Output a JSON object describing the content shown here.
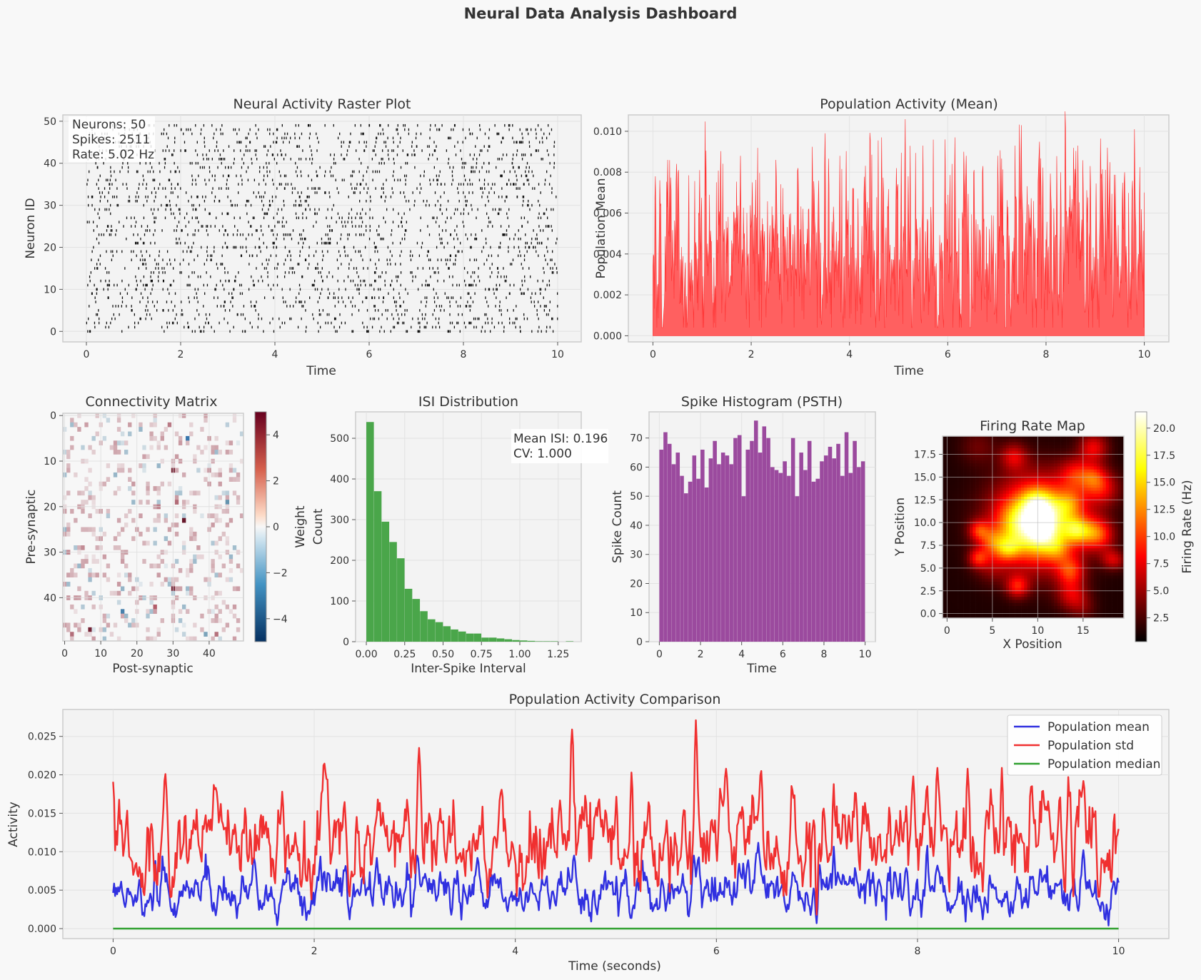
{
  "suptitle": "Neural Data Analysis Dashboard",
  "colors": {
    "background": "#f8f8f8",
    "panel": "#f3f3f3",
    "spike": "#111111",
    "pop_fill": "#ff6060",
    "pop_line": "#ff3030",
    "isi": "#4aa64a",
    "psth": "#9b4a9e",
    "mean": "#3030e0",
    "std": "#f03030",
    "median": "#30a030"
  },
  "chart_data": [
    {
      "id": "raster",
      "type": "scatter",
      "title": "Neural Activity Raster Plot",
      "xlabel": "Time",
      "ylabel": "Neuron ID",
      "xlim": [
        -0.5,
        10.5
      ],
      "ylim": [
        -2.5,
        51.5
      ],
      "xticks": [
        0,
        2,
        4,
        6,
        8,
        10
      ],
      "yticks": [
        0,
        10,
        20,
        30,
        40,
        50
      ],
      "marker": "|",
      "neurons": 50,
      "grid": true,
      "stats": [
        "Neurons: 50",
        "Spikes: 2511",
        "Rate: 5.02 Hz"
      ]
    },
    {
      "id": "population-mean",
      "type": "area",
      "title": "Population Activity (Mean)",
      "xlabel": "Time",
      "ylabel": "Population Mean",
      "xlim": [
        -0.5,
        10.5
      ],
      "ylim": [
        -0.0003,
        0.0108
      ],
      "xticks": [
        0,
        2,
        4,
        6,
        8,
        10
      ],
      "yticks": [
        "0.000",
        "0.002",
        "0.004",
        "0.006",
        "0.008",
        "0.010"
      ],
      "x_range": [
        0,
        10
      ],
      "typical_range": [
        0.0015,
        0.0065
      ],
      "peaks": [
        [
          0.05,
          0.0078
        ],
        [
          0.3,
          0.0086
        ],
        [
          0.52,
          0.0081
        ],
        [
          0.95,
          0.0081
        ],
        [
          1.38,
          0.0098
        ],
        [
          1.78,
          0.0088
        ],
        [
          2.5,
          0.0086
        ],
        [
          2.95,
          0.0082
        ],
        [
          3.5,
          0.0099
        ],
        [
          3.8,
          0.0088
        ],
        [
          4.65,
          0.0097
        ],
        [
          4.95,
          0.0082
        ],
        [
          5.5,
          0.0093
        ],
        [
          5.95,
          0.0096
        ],
        [
          6.15,
          0.0097
        ],
        [
          6.72,
          0.0083
        ],
        [
          7.02,
          0.0096
        ],
        [
          7.5,
          0.0103
        ],
        [
          7.85,
          0.0082
        ],
        [
          8.65,
          0.0093
        ],
        [
          8.9,
          0.0083
        ],
        [
          9.25,
          0.0092
        ],
        [
          9.6,
          0.008
        ],
        [
          9.8,
          0.0101
        ],
        [
          6.38,
          0.0088
        ],
        [
          2.02,
          0.0075
        ],
        [
          5.2,
          0.0078
        ],
        [
          8.3,
          0.008
        ]
      ],
      "dips": [
        [
          0.9,
          0.0016
        ],
        [
          1.4,
          0.0011
        ],
        [
          2.3,
          0.0009
        ],
        [
          3.45,
          0.002
        ],
        [
          4.15,
          0.0012
        ],
        [
          5.32,
          0.0018
        ],
        [
          7.0,
          0.0006
        ],
        [
          8.8,
          0.0012
        ],
        [
          9.7,
          0.0018
        ]
      ],
      "grid": true
    },
    {
      "id": "connectivity",
      "type": "heatmap",
      "title": "Connectivity Matrix",
      "xlabel": "Post-synaptic",
      "ylabel": "Pre-synaptic",
      "size": 50,
      "xticks": [
        0,
        10,
        20,
        30,
        40
      ],
      "yticks": [
        0,
        10,
        20,
        30,
        40
      ],
      "colorbar_label": "Weight",
      "colorbar_ticks": [
        "4",
        "2",
        "0",
        "−2",
        "−4"
      ],
      "vlim": [
        -5,
        5
      ],
      "colormap": "RdBu_r"
    },
    {
      "id": "isi",
      "type": "bar",
      "title": "ISI Distribution",
      "xlabel": "Inter-Spike Interval",
      "ylabel": "Count",
      "xlim": [
        -0.07,
        1.4
      ],
      "ylim": [
        0,
        565
      ],
      "xticks": [
        "0.00",
        "0.25",
        "0.50",
        "0.75",
        "1.00",
        "1.25"
      ],
      "yticks": [
        0,
        100,
        200,
        300,
        400,
        500
      ],
      "bin_width": 0.05,
      "x": [
        0.0,
        0.05,
        0.1,
        0.15,
        0.2,
        0.25,
        0.3,
        0.35,
        0.4,
        0.45,
        0.5,
        0.55,
        0.6,
        0.65,
        0.7,
        0.75,
        0.8,
        0.85,
        0.9,
        0.95,
        1.0,
        1.05,
        1.1,
        1.15,
        1.2,
        1.25,
        1.3
      ],
      "values": [
        540,
        370,
        295,
        245,
        205,
        130,
        105,
        75,
        55,
        48,
        38,
        30,
        25,
        20,
        20,
        10,
        10,
        8,
        6,
        4,
        3,
        2,
        1,
        1,
        1,
        0,
        1
      ],
      "annotation": [
        "Mean ISI: 0.196",
        "CV: 1.000"
      ],
      "grid": true
    },
    {
      "id": "psth",
      "type": "bar",
      "title": "Spike Histogram (PSTH)",
      "xlabel": "Time",
      "ylabel": "Spike Count",
      "xlim": [
        -0.5,
        10.5
      ],
      "ylim": [
        0,
        79
      ],
      "xticks": [
        0,
        2,
        4,
        6,
        8,
        10
      ],
      "yticks": [
        0,
        10,
        20,
        30,
        40,
        50,
        60,
        70
      ],
      "bin_width": 0.2,
      "values": [
        66,
        72,
        68,
        61,
        65,
        57,
        51,
        55,
        64,
        56,
        66,
        53,
        63,
        69,
        61,
        65,
        64,
        61,
        70,
        71,
        50,
        66,
        69,
        76,
        65,
        74,
        70,
        60,
        59,
        58,
        62,
        57,
        70,
        50,
        65,
        59,
        69,
        55,
        56,
        62,
        64,
        67,
        63,
        68,
        57,
        72,
        58,
        69,
        60,
        62
      ],
      "grid": true
    },
    {
      "id": "firing-rate-map",
      "type": "heatmap",
      "title": "Firing Rate Map",
      "xlabel": "X Position",
      "ylabel": "Y Position",
      "grid_size": 20,
      "xticks": [
        0,
        5,
        10,
        15
      ],
      "yticks": [
        "0.0",
        "2.5",
        "5.0",
        "7.5",
        "10.0",
        "12.5",
        "15.0",
        "17.5"
      ],
      "colorbar_label": "Firing Rate (Hz)",
      "colorbar_ticks": [
        "20.0",
        "17.5",
        "15.0",
        "12.5",
        "10.0",
        "7.5",
        "5.0",
        "2.5"
      ],
      "vlim": [
        0.3,
        21.5
      ],
      "colormap": "hot",
      "place_fields": [
        [
          10,
          10,
          3.3,
          16
        ],
        [
          8,
          10,
          1.6,
          5
        ],
        [
          11,
          11,
          1.4,
          5
        ],
        [
          10,
          8,
          1.3,
          3
        ]
      ]
    },
    {
      "id": "comparison",
      "type": "line",
      "title": "Population Activity Comparison",
      "xlabel": "Time (seconds)",
      "ylabel": "Activity",
      "xlim": [
        -0.5,
        10.5
      ],
      "ylim": [
        -0.0013,
        0.0285
      ],
      "xticks": [
        0,
        2,
        4,
        6,
        8,
        10
      ],
      "yticks": [
        "0.000",
        "0.005",
        "0.010",
        "0.015",
        "0.020",
        "0.025"
      ],
      "legend_position": "upper right",
      "series": [
        {
          "name": "Population mean",
          "base": 0.005,
          "amplitude": 0.0016,
          "peaks": [
            [
              0.42,
              0.0088
            ],
            [
              1.4,
              0.0092
            ],
            [
              2.62,
              0.0092
            ],
            [
              3.02,
              0.0095
            ],
            [
              3.62,
              0.0092
            ],
            [
              4.58,
              0.0095
            ],
            [
              5.78,
              0.0095
            ],
            [
              6.32,
              0.0089
            ],
            [
              7.02,
              0.0099
            ],
            [
              8.2,
              0.0082
            ],
            [
              9.65,
              0.0102
            ]
          ],
          "dips": [
            [
              0.12,
              0.0028
            ],
            [
              1.95,
              0.0019
            ],
            [
              2.35,
              0.0012
            ],
            [
              3.36,
              0.0018
            ],
            [
              5.5,
              0.0023
            ],
            [
              7.0,
              0.0007
            ],
            [
              8.65,
              0.0012
            ],
            [
              9.6,
              0.0023
            ]
          ]
        },
        {
          "name": "Population std",
          "base": 0.0115,
          "amplitude": 0.0032,
          "peaks": [
            [
              0.0,
              0.0191
            ],
            [
              0.52,
              0.0201
            ],
            [
              1.02,
              0.0183
            ],
            [
              1.68,
              0.0178
            ],
            [
              3.04,
              0.0235
            ],
            [
              4.56,
              0.0259
            ],
            [
              5.16,
              0.0203
            ],
            [
              5.8,
              0.0271
            ],
            [
              6.1,
              0.0208
            ],
            [
              6.45,
              0.0205
            ],
            [
              7.96,
              0.0198
            ],
            [
              8.2,
              0.0209
            ],
            [
              8.5,
              0.0208
            ],
            [
              8.84,
              0.0209
            ],
            [
              9.65,
              0.0192
            ]
          ],
          "dips": [
            [
              1.97,
              0.0038
            ],
            [
              2.35,
              0.0042
            ],
            [
              7.0,
              0.0018
            ],
            [
              8.65,
              0.0048
            ],
            [
              9.55,
              0.0042
            ]
          ]
        },
        {
          "name": "Population median",
          "base": 0.0,
          "amplitude": 0.0,
          "peaks": [],
          "dips": []
        }
      ],
      "grid": true
    }
  ]
}
